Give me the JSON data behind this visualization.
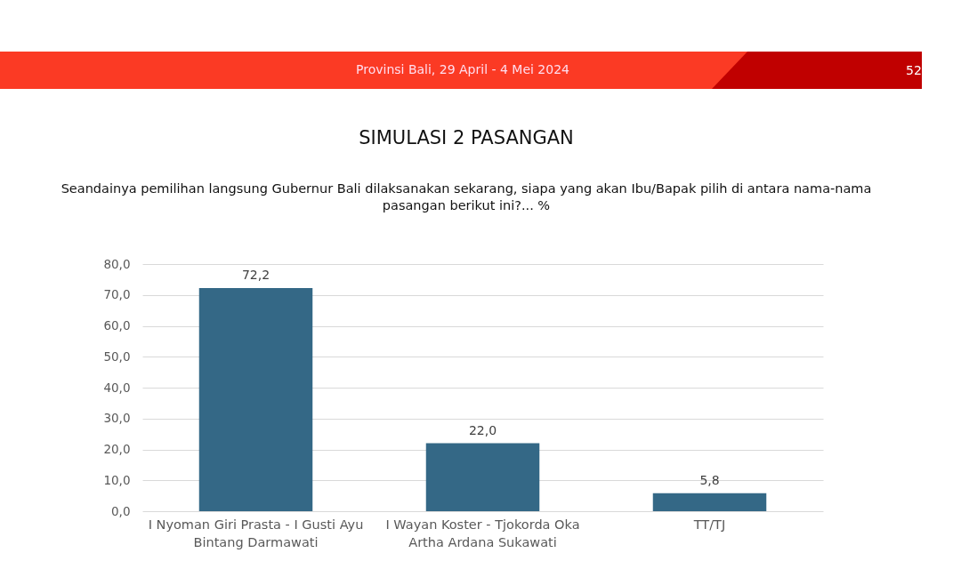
{
  "chart_data": {
    "type": "bar",
    "title": "SIMULASI 2 PASANGAN",
    "subtitle": "Seandainya pemilihan langsung Gubernur Bali dilaksanakan sekarang, siapa yang akan Ibu/Bapak pilih di antara nama-nama pasangan berikut ini?... %",
    "annotations": [
      "Provinsi Bali, 29 April - 4 Mei 2024",
      "52"
    ],
    "categories": [
      "I Nyoman Giri Prasta - I Gusti Ayu Bintang Darmawati",
      "I Wayan Koster - Tjokorda Oka Artha Ardana Sukawati",
      "TT/TJ"
    ],
    "values": [
      72.2,
      22.0,
      5.8
    ],
    "value_labels": [
      "72,2",
      "22,0",
      "5,8"
    ],
    "color": "#346886",
    "ylim": [
      0,
      80
    ],
    "yticks": [
      {
        "value": 0,
        "label": "0,0"
      },
      {
        "value": 10,
        "label": "10,0"
      },
      {
        "value": 20,
        "label": "20,0"
      },
      {
        "value": 30,
        "label": "30,0"
      },
      {
        "value": 40,
        "label": "40,0"
      },
      {
        "value": 50,
        "label": "50,0"
      },
      {
        "value": 60,
        "label": "60,0"
      },
      {
        "value": 70,
        "label": "70,0"
      },
      {
        "value": 80,
        "label": "80,0"
      }
    ],
    "grid": "y"
  }
}
